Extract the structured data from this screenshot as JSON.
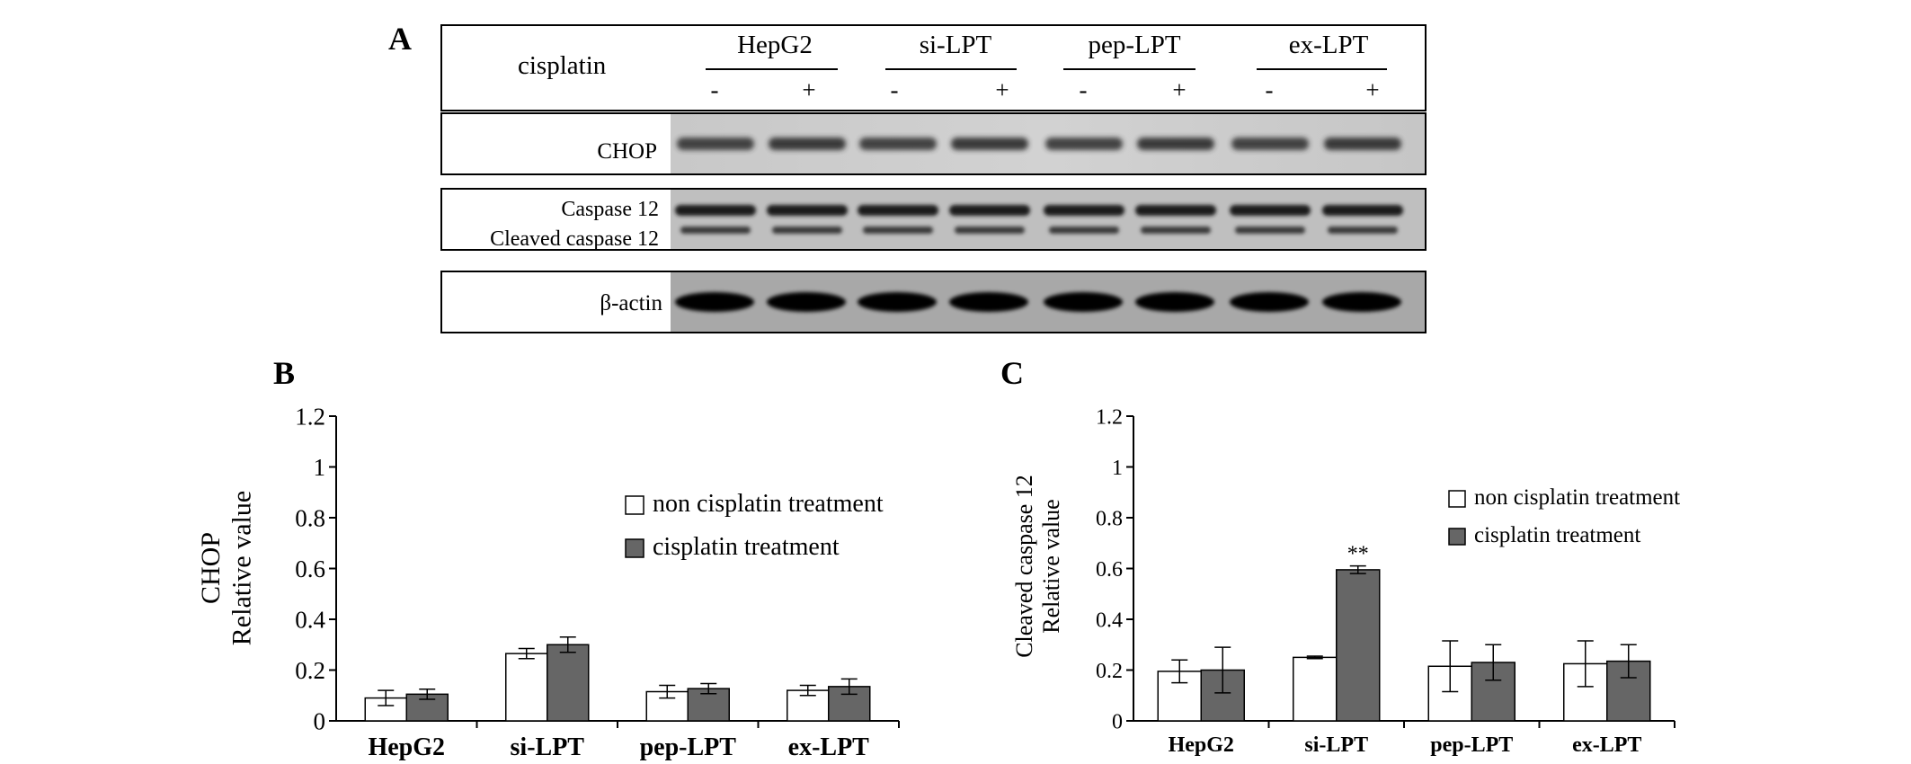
{
  "panels": {
    "a": "A",
    "b": "B",
    "c": "C"
  },
  "blot": {
    "treatment_label": "cisplatin",
    "groups": [
      "HepG2",
      "si-LPT",
      "pep-LPT",
      "ex-LPT"
    ],
    "lane_signs": [
      "-",
      "+",
      "-",
      "+",
      "-",
      "+",
      "-",
      "+"
    ],
    "rows": {
      "chop": "CHOP",
      "caspase12": "Caspase 12",
      "cleaved": "Cleaved caspase 12",
      "actin": "β-actin"
    }
  },
  "chart_data": [
    {
      "type": "bar",
      "panel": "B",
      "title": "",
      "ylabel_lines": [
        "CHOP",
        "Relative value"
      ],
      "xlabel": "",
      "categories": [
        "HepG2",
        "si-LPT",
        "pep-LPT",
        "ex-LPT"
      ],
      "ylim": [
        0,
        1.2
      ],
      "yticks": [
        "0",
        "0.2",
        "0.4",
        "0.6",
        "0.8",
        "1",
        "1.2"
      ],
      "legend_position": "upper-right",
      "series": [
        {
          "name": "non cisplatin treatment",
          "color": "#ffffff",
          "values": [
            0.09,
            0.265,
            0.115,
            0.12
          ],
          "errors": [
            0.03,
            0.02,
            0.025,
            0.02
          ]
        },
        {
          "name": "cisplatin treatment",
          "color": "#666666",
          "values": [
            0.105,
            0.3,
            0.127,
            0.135
          ],
          "errors": [
            0.02,
            0.03,
            0.02,
            0.03
          ]
        }
      ],
      "annotations": []
    },
    {
      "type": "bar",
      "panel": "C",
      "title": "",
      "ylabel_lines": [
        "Cleaved caspase 12",
        "Relative value"
      ],
      "xlabel": "",
      "categories": [
        "HepG2",
        "si-LPT",
        "pep-LPT",
        "ex-LPT"
      ],
      "ylim": [
        0,
        1.2
      ],
      "yticks": [
        "0",
        "0.2",
        "0.4",
        "0.6",
        "0.8",
        "1",
        "1.2"
      ],
      "legend_position": "upper-right",
      "series": [
        {
          "name": "non cisplatin treatment",
          "color": "#ffffff",
          "values": [
            0.195,
            0.25,
            0.215,
            0.225
          ],
          "errors": [
            0.045,
            0.005,
            0.1,
            0.09
          ]
        },
        {
          "name": "cisplatin treatment",
          "color": "#666666",
          "values": [
            0.2,
            0.595,
            0.23,
            0.235
          ],
          "errors": [
            0.09,
            0.015,
            0.07,
            0.065
          ]
        }
      ],
      "annotations": [
        {
          "text": "**",
          "category": "si-LPT",
          "series": 1
        }
      ]
    }
  ]
}
